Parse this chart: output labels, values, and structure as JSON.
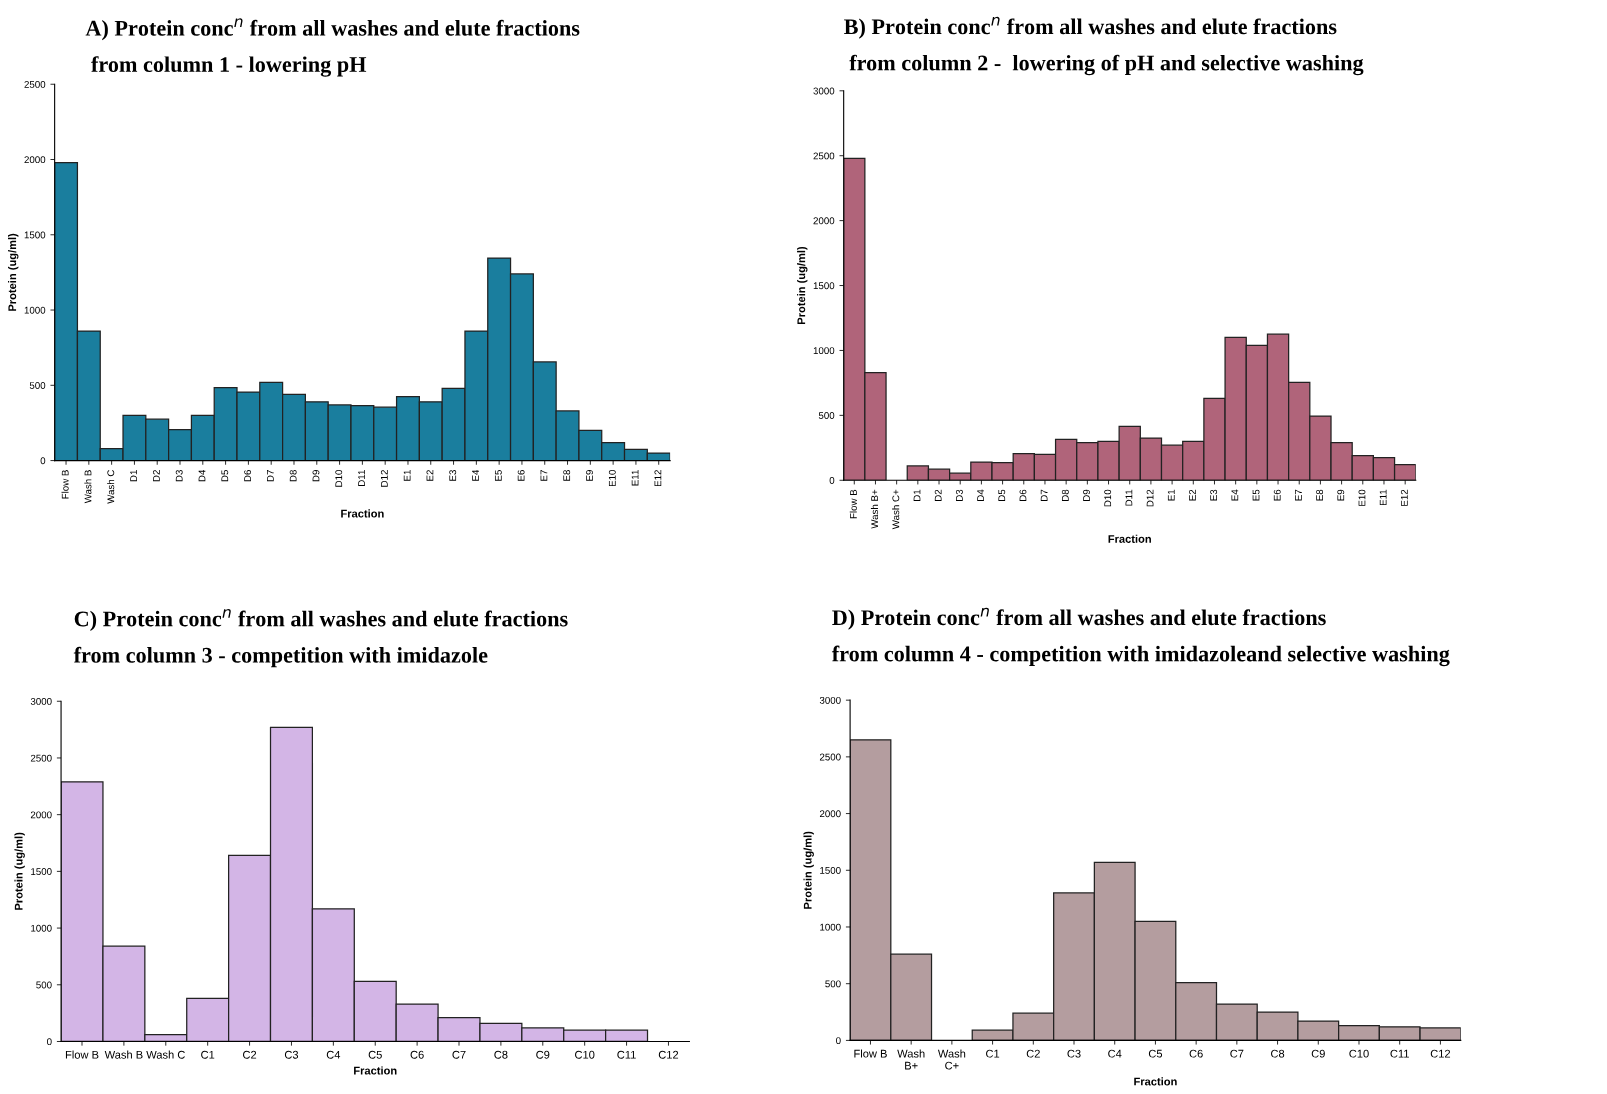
{
  "chart_data": [
    {
      "type": "bar",
      "title": "A) Protein conc$^{n}$ from all washes and elute fractions\n from column 1 - lowering pH",
      "xlabel": "Fraction",
      "ylabel": "Protein (ug/ml)",
      "ylim": [
        0,
        2500
      ],
      "yticks": [
        0,
        500,
        1000,
        1500,
        2000,
        2500
      ],
      "grid": false,
      "color": "#1a7e9e",
      "categories": [
        "Flow B",
        "Wash B",
        "Wash C",
        "D1",
        "D2",
        "D3",
        "D4",
        "D5",
        "D6",
        "D7",
        "D8",
        "D9",
        "D10",
        "D11",
        "D12",
        "E1",
        "E2",
        "E3",
        "E4",
        "E5",
        "E6",
        "E7",
        "E8",
        "E9",
        "E10",
        "E11",
        "E12"
      ],
      "values": [
        1980,
        860,
        80,
        300,
        275,
        205,
        300,
        485,
        455,
        520,
        440,
        390,
        370,
        365,
        355,
        425,
        390,
        480,
        860,
        1345,
        1240,
        655,
        330,
        200,
        120,
        75,
        50
      ]
    },
    {
      "type": "bar",
      "title": "B) Protein conc$^{n}$ from all washes and elute fractions\n from column 2 -  lowering of pH and selective washing",
      "xlabel": "Fraction",
      "ylabel": "Protein (ug/ml)",
      "ylim": [
        0,
        3000
      ],
      "yticks": [
        0,
        500,
        1000,
        1500,
        2000,
        2500,
        3000
      ],
      "grid": false,
      "color": "#b0647a",
      "categories": [
        "Flow B",
        "Wash B+",
        "Wash C+",
        "D1",
        "D2",
        "D3",
        "D4",
        "D5",
        "D6",
        "D7",
        "D8",
        "D9",
        "D10",
        "D11",
        "D12",
        "E1",
        "E2",
        "E3",
        "E4",
        "E5",
        "E6",
        "E7",
        "E8",
        "E9",
        "E10",
        "E11",
        "E12"
      ],
      "values": [
        2480,
        830,
        null,
        110,
        85,
        55,
        140,
        135,
        205,
        200,
        315,
        290,
        300,
        415,
        325,
        270,
        300,
        630,
        1100,
        1040,
        1125,
        755,
        495,
        290,
        190,
        175,
        120
      ]
    },
    {
      "type": "bar",
      "title": "C) Protein conc$^{n}$ from all washes and elute fractions\nfrom column 3 - competition with imidazole",
      "xlabel": "Fraction",
      "ylabel": "Protein (ug/ml)",
      "ylim": [
        0,
        3000
      ],
      "yticks": [
        0,
        500,
        1000,
        1500,
        2000,
        2500,
        3000
      ],
      "grid": false,
      "color": "#d3b5e6",
      "categories": [
        "Flow B",
        "Wash B",
        "Wash C",
        "C1",
        "C2",
        "C3",
        "C4",
        "C5",
        "C6",
        "C7",
        "C8",
        "C9",
        "C10",
        "C11",
        "C12"
      ],
      "values": [
        2290,
        840,
        60,
        380,
        1640,
        2770,
        1170,
        530,
        330,
        210,
        160,
        120,
        100,
        100,
        null
      ]
    },
    {
      "type": "bar",
      "title": "D) Protein conc$^{n}$ from all washes and elute fractions\nfrom column 4 - competition with imidazoleand selective washing",
      "xlabel": "Fraction",
      "ylabel": "Protein (ug/ml)",
      "ylim": [
        0,
        3000
      ],
      "yticks": [
        0,
        500,
        1000,
        1500,
        2000,
        2500,
        3000
      ],
      "grid": false,
      "color": "#b49d9f",
      "categories": [
        "Flow B",
        "Wash\nB+",
        "Wash\nC+",
        "C1",
        "C2",
        "C3",
        "C4",
        "C5",
        "C6",
        "C7",
        "C8",
        "C9",
        "C10",
        "C11",
        "C12"
      ],
      "values": [
        2650,
        760,
        null,
        90,
        240,
        1300,
        1570,
        1050,
        510,
        320,
        250,
        170,
        130,
        120,
        110
      ]
    }
  ]
}
